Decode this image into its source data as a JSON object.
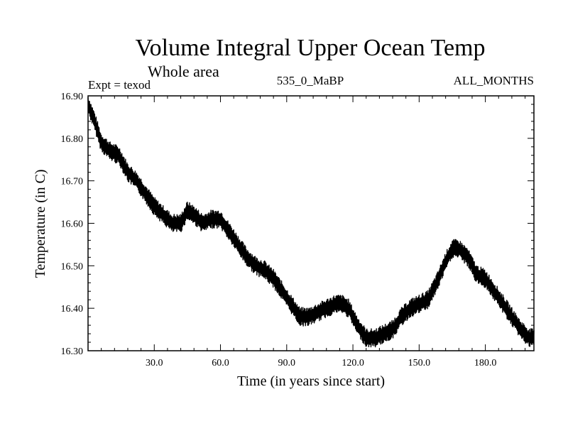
{
  "chart_data": {
    "type": "line",
    "title": "Volume Integral Upper Ocean Temp",
    "subtitle": "Whole area",
    "experiment": "Expt = texod",
    "run_label": "535_0_MaBP",
    "months_label": "ALL_MONTHS",
    "xlabel": "Time (in years since start)",
    "ylabel": "Temperature (in C)",
    "xlim": [
      0,
      202
    ],
    "ylim": [
      16.3,
      16.9
    ],
    "x_ticks": [
      30,
      60,
      90,
      120,
      150,
      180
    ],
    "x_tick_labels": [
      "30.0",
      "60.0",
      "90.0",
      "120.0",
      "150.0",
      "180.0"
    ],
    "y_ticks": [
      16.3,
      16.4,
      16.5,
      16.6,
      16.7,
      16.8,
      16.9
    ],
    "y_tick_labels": [
      "16.30",
      "16.40",
      "16.50",
      "16.60",
      "16.70",
      "16.80",
      "16.90"
    ],
    "line_color": "#000000",
    "series": [
      {
        "name": "Temperature",
        "x": [
          0,
          3,
          6,
          10,
          14,
          18,
          22,
          26,
          30,
          34,
          38,
          42,
          45,
          48,
          52,
          56,
          60,
          64,
          68,
          72,
          76,
          80,
          84,
          88,
          92,
          96,
          100,
          104,
          108,
          112,
          115,
          118,
          122,
          126,
          130,
          134,
          138,
          142,
          146,
          150,
          154,
          158,
          162,
          165,
          168,
          172,
          176,
          180,
          184,
          188,
          192,
          196,
          200,
          202
        ],
        "values": [
          16.88,
          16.84,
          16.79,
          16.77,
          16.76,
          16.72,
          16.7,
          16.67,
          16.64,
          16.62,
          16.6,
          16.6,
          16.63,
          16.62,
          16.6,
          16.61,
          16.61,
          16.58,
          16.55,
          16.52,
          16.5,
          16.49,
          16.47,
          16.44,
          16.41,
          16.38,
          16.38,
          16.39,
          16.4,
          16.41,
          16.41,
          16.4,
          16.36,
          16.33,
          16.33,
          16.34,
          16.35,
          16.38,
          16.4,
          16.41,
          16.42,
          16.46,
          16.51,
          16.54,
          16.54,
          16.52,
          16.48,
          16.47,
          16.44,
          16.41,
          16.38,
          16.35,
          16.33,
          16.33
        ]
      }
    ]
  }
}
